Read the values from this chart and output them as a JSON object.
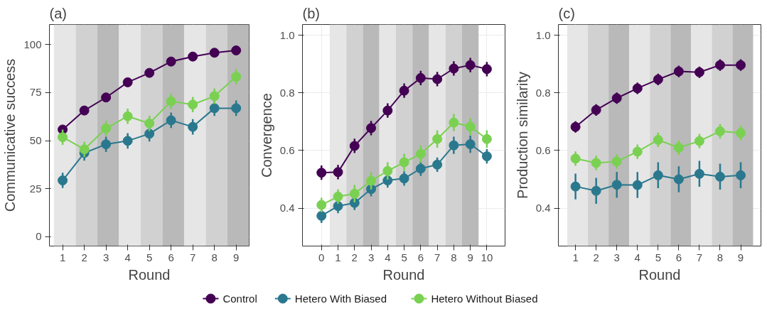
{
  "chart_data": [
    {
      "type": "line",
      "title": "(a)",
      "xlabel": "Round",
      "ylabel": "Communicative success",
      "marker": "circle",
      "line_style": "solid",
      "grid": true,
      "x": [
        1,
        2,
        3,
        4,
        5,
        6,
        7,
        8,
        9
      ],
      "xlim": [
        0.39,
        9.6
      ],
      "xticks": [
        1,
        2,
        3,
        4,
        5,
        6,
        7,
        8,
        9
      ],
      "ylim": [
        -4.9,
        110.5
      ],
      "yticks": [
        0,
        25,
        50,
        75,
        100
      ],
      "bands": [
        {
          "axis": "x",
          "from": 0.6,
          "to": 1.6,
          "color": "#e6e6e6"
        },
        {
          "axis": "x",
          "from": 1.6,
          "to": 2.6,
          "color": "#d1d1d1"
        },
        {
          "axis": "x",
          "from": 2.6,
          "to": 3.6,
          "color": "#b9b9b9"
        },
        {
          "axis": "x",
          "from": 3.6,
          "to": 4.6,
          "color": "#e6e6e6"
        },
        {
          "axis": "x",
          "from": 4.6,
          "to": 5.6,
          "color": "#d1d1d1"
        },
        {
          "axis": "x",
          "from": 5.6,
          "to": 6.6,
          "color": "#b9b9b9"
        },
        {
          "axis": "x",
          "from": 6.6,
          "to": 7.6,
          "color": "#e6e6e6"
        },
        {
          "axis": "x",
          "from": 7.6,
          "to": 8.6,
          "color": "#d1d1d1"
        },
        {
          "axis": "x",
          "from": 8.6,
          "to": 9.6,
          "color": "#b9b9b9"
        }
      ],
      "series": [
        {
          "color": "#440154",
          "values": [
            55.8,
            65.7,
            72.5,
            80.4,
            85.3,
            91.2,
            93.8,
            95.8,
            97
          ],
          "errors": [
            2,
            2,
            2,
            2,
            2,
            2,
            2,
            2,
            2
          ]
        },
        {
          "color": "#2a788e",
          "values": [
            29.3,
            43.6,
            48.1,
            49.9,
            53.6,
            60.6,
            57.2,
            66.9,
            66.9
          ],
          "errors": [
            4,
            4,
            4,
            4,
            4,
            4,
            4,
            4,
            4
          ]
        },
        {
          "color": "#7ad151",
          "values": [
            51.8,
            45.5,
            56.4,
            62.7,
            59.0,
            70.5,
            68.8,
            73.2,
            83.3
          ],
          "errors": [
            4,
            4,
            4,
            4,
            4,
            4,
            4,
            4,
            4
          ]
        }
      ]
    },
    {
      "type": "line",
      "title": "(b)",
      "xlabel": "Round",
      "ylabel": "Convergence",
      "marker": "circle",
      "line_style": "solid",
      "grid": true,
      "legend": "bottom",
      "x": [
        0,
        1,
        2,
        3,
        4,
        5,
        6,
        7,
        8,
        9,
        10
      ],
      "xlim": [
        -1.15,
        11.1
      ],
      "xticks": [
        0,
        1,
        2,
        3,
        4,
        5,
        6,
        7,
        8,
        9,
        10
      ],
      "ylim": [
        0.268,
        1.038
      ],
      "yticks": [
        0.4,
        0.6,
        0.8,
        {
          "value": 1,
          "label": "1.0"
        }
      ],
      "bands": [
        {
          "axis": "x",
          "from": 0.5,
          "to": 1.5,
          "color": "#e6e6e6"
        },
        {
          "axis": "x",
          "from": 1.5,
          "to": 2.5,
          "color": "#d1d1d1"
        },
        {
          "axis": "x",
          "from": 2.5,
          "to": 3.5,
          "color": "#b9b9b9"
        },
        {
          "axis": "x",
          "from": 3.5,
          "to": 4.5,
          "color": "#e6e6e6"
        },
        {
          "axis": "x",
          "from": 4.5,
          "to": 5.5,
          "color": "#d1d1d1"
        },
        {
          "axis": "x",
          "from": 5.5,
          "to": 6.5,
          "color": "#b9b9b9"
        },
        {
          "axis": "x",
          "from": 6.5,
          "to": 7.5,
          "color": "#e6e6e6"
        },
        {
          "axis": "x",
          "from": 7.5,
          "to": 8.5,
          "color": "#d1d1d1"
        },
        {
          "axis": "x",
          "from": 8.5,
          "to": 9.5,
          "color": "#b9b9b9"
        }
      ],
      "series": [
        {
          "name": "Control",
          "color": "#440154",
          "values": [
            0.523,
            0.525,
            0.616,
            0.678,
            0.739,
            0.808,
            0.852,
            0.848,
            0.885,
            0.897,
            0.883
          ],
          "errors": [
            0.025,
            0.025,
            0.025,
            0.025,
            0.025,
            0.025,
            0.025,
            0.025,
            0.025,
            0.025,
            0.025
          ]
        },
        {
          "name": "Hetero With Biased",
          "color": "#2a788e",
          "values": [
            0.373,
            0.407,
            0.418,
            0.466,
            0.496,
            0.503,
            0.537,
            0.551,
            0.618,
            0.622,
            0.58
          ],
          "errors": [
            0.025,
            0.025,
            0.025,
            0.025,
            0.025,
            0.025,
            0.025,
            0.025,
            0.03,
            0.03,
            0.025
          ]
        },
        {
          "name": "Hetero Without Biased",
          "color": "#7ad151",
          "values": [
            0.411,
            0.44,
            0.45,
            0.495,
            0.529,
            0.559,
            0.588,
            0.64,
            0.697,
            0.683,
            0.64
          ],
          "errors": [
            0.025,
            0.025,
            0.03,
            0.03,
            0.03,
            0.03,
            0.03,
            0.03,
            0.03,
            0.03,
            0.03
          ]
        }
      ]
    },
    {
      "type": "line",
      "title": "(c)",
      "xlabel": "Round",
      "ylabel": "Production similarity",
      "marker": "circle",
      "line_style": "solid",
      "grid": true,
      "x": [
        1,
        2,
        3,
        4,
        5,
        6,
        7,
        8,
        9
      ],
      "xlim": [
        0.17,
        9.98
      ],
      "xticks": [
        1,
        2,
        3,
        4,
        5,
        6,
        7,
        8,
        9
      ],
      "ylim": [
        0.268,
        1.038
      ],
      "yticks": [
        0.4,
        0.6,
        0.8,
        {
          "value": 1,
          "label": "1.0"
        }
      ],
      "bands": [
        {
          "axis": "x",
          "from": 0.6,
          "to": 1.6,
          "color": "#e6e6e6"
        },
        {
          "axis": "x",
          "from": 1.6,
          "to": 2.6,
          "color": "#d1d1d1"
        },
        {
          "axis": "x",
          "from": 2.6,
          "to": 3.6,
          "color": "#b9b9b9"
        },
        {
          "axis": "x",
          "from": 3.6,
          "to": 4.6,
          "color": "#e6e6e6"
        },
        {
          "axis": "x",
          "from": 4.6,
          "to": 5.6,
          "color": "#d1d1d1"
        },
        {
          "axis": "x",
          "from": 5.6,
          "to": 6.6,
          "color": "#b9b9b9"
        },
        {
          "axis": "x",
          "from": 6.6,
          "to": 7.6,
          "color": "#e6e6e6"
        },
        {
          "axis": "x",
          "from": 7.6,
          "to": 8.6,
          "color": "#d1d1d1"
        },
        {
          "axis": "x",
          "from": 8.6,
          "to": 9.6,
          "color": "#b9b9b9"
        }
      ],
      "series": [
        {
          "color": "#440154",
          "values": [
            0.682,
            0.741,
            0.782,
            0.816,
            0.847,
            0.875,
            0.872,
            0.897,
            0.897
          ],
          "errors": [
            0.02,
            0.02,
            0.02,
            0.02,
            0.02,
            0.02,
            0.02,
            0.02,
            0.02
          ]
        },
        {
          "color": "#2a788e",
          "values": [
            0.475,
            0.46,
            0.481,
            0.48,
            0.514,
            0.5,
            0.519,
            0.509,
            0.514
          ],
          "errors": [
            0.045,
            0.045,
            0.045,
            0.045,
            0.045,
            0.045,
            0.045,
            0.045,
            0.045
          ]
        },
        {
          "color": "#7ad151",
          "values": [
            0.572,
            0.557,
            0.562,
            0.596,
            0.637,
            0.61,
            0.633,
            0.667,
            0.661
          ],
          "errors": [
            0.025,
            0.025,
            0.025,
            0.025,
            0.025,
            0.025,
            0.025,
            0.025,
            0.025
          ]
        }
      ]
    }
  ]
}
